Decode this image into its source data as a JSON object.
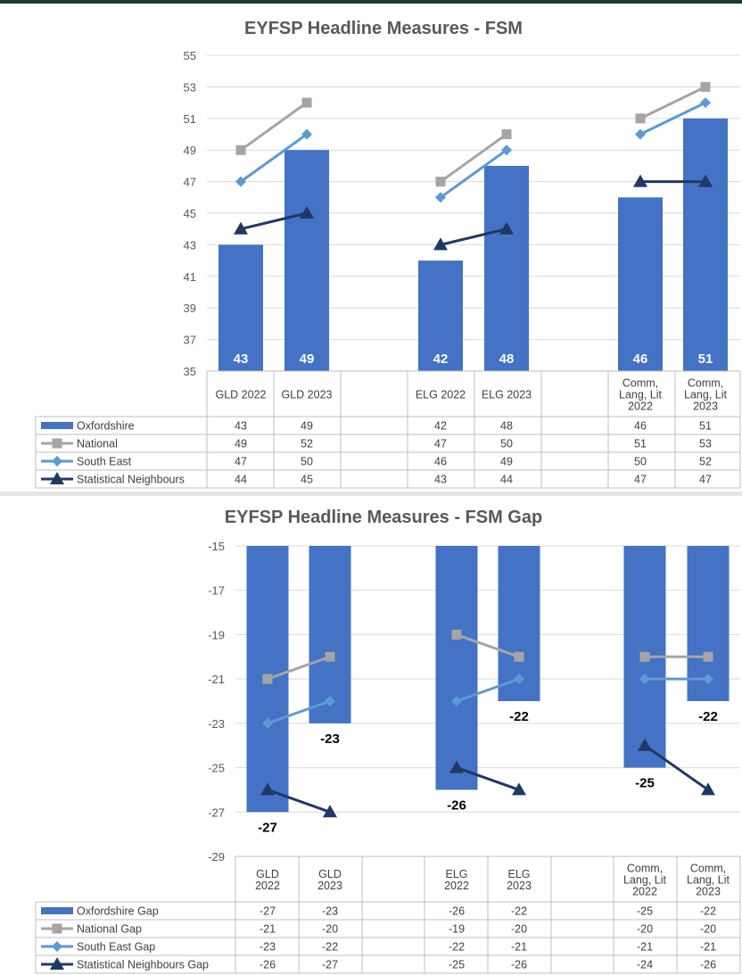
{
  "colors": {
    "oxfordshire": "#4472c4",
    "national": "#a5a5a5",
    "south_east": "#5b9bd5",
    "statistical_neighbours": "#203864"
  },
  "chart_data": [
    {
      "type": "bar",
      "title": "EYFSP Headline Measures - FSM",
      "categories": [
        "GLD 2022",
        "GLD 2023",
        "ELG 2022",
        "ELG 2023",
        "Comm, Lang, Lit 2022",
        "Comm, Lang, Lit 2023"
      ],
      "category_labels": [
        [
          "GLD 2022"
        ],
        [
          "GLD 2023"
        ],
        [
          "ELG 2022"
        ],
        [
          "ELG 2023"
        ],
        [
          "Comm,",
          "Lang, Lit",
          "2022"
        ],
        [
          "Comm,",
          "Lang, Lit",
          "2023"
        ]
      ],
      "ylim": [
        35,
        55
      ],
      "yticks": [
        35,
        37,
        39,
        41,
        43,
        45,
        47,
        49,
        51,
        53,
        55
      ],
      "grid": true,
      "series": [
        {
          "name": "Oxfordshire",
          "kind": "bar",
          "values": [
            43,
            49,
            42,
            48,
            46,
            51
          ]
        },
        {
          "name": "National",
          "kind": "line",
          "marker": "square",
          "values": [
            49,
            52,
            47,
            50,
            51,
            53
          ]
        },
        {
          "name": "South East",
          "kind": "line",
          "marker": "diamond",
          "values": [
            47,
            50,
            46,
            49,
            50,
            52
          ]
        },
        {
          "name": "Statistical Neighbours",
          "kind": "line",
          "marker": "triangle",
          "values": [
            44,
            45,
            43,
            44,
            47,
            47
          ]
        }
      ]
    },
    {
      "type": "bar",
      "title": "EYFSP Headline Measures - FSM Gap",
      "categories": [
        "GLD 2022",
        "GLD 2023",
        "ELG 2022",
        "ELG 2023",
        "Comm, Lang, Lit 2022",
        "Comm, Lang, Lit 2023"
      ],
      "category_labels": [
        [
          "GLD",
          "2022"
        ],
        [
          "GLD",
          "2023"
        ],
        [
          "ELG",
          "2022"
        ],
        [
          "ELG",
          "2023"
        ],
        [
          "Comm,",
          "Lang, Lit",
          "2022"
        ],
        [
          "Comm,",
          "Lang, Lit",
          "2023"
        ]
      ],
      "ylim": [
        -29,
        -15
      ],
      "yticks": [
        -29,
        -27,
        -25,
        -23,
        -21,
        -19,
        -17,
        -15
      ],
      "grid": true,
      "series": [
        {
          "name": "Oxfordshire Gap",
          "kind": "bar",
          "values": [
            -27,
            -23,
            -26,
            -22,
            -25,
            -22
          ]
        },
        {
          "name": "National Gap",
          "kind": "line",
          "marker": "square",
          "values": [
            -21,
            -20,
            -19,
            -20,
            -20,
            -20
          ]
        },
        {
          "name": "South East Gap",
          "kind": "line",
          "marker": "diamond",
          "values": [
            -23,
            -22,
            -22,
            -21,
            -21,
            -21
          ]
        },
        {
          "name": "Statistical Neighbours Gap",
          "kind": "line",
          "marker": "triangle",
          "values": [
            -26,
            -27,
            -25,
            -26,
            -24,
            -26
          ]
        }
      ]
    }
  ]
}
